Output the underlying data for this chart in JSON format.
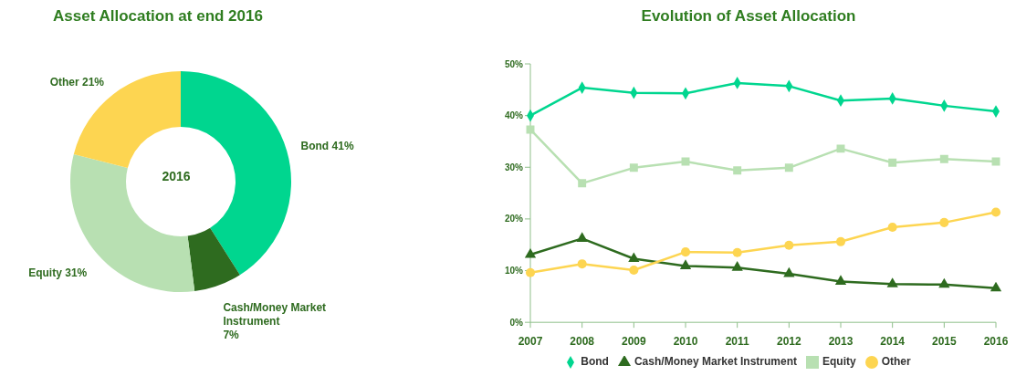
{
  "chart_data": [
    {
      "type": "donut",
      "title": "Asset Allocation at end 2016",
      "categories": [
        "Bond",
        "Cash/Money Market Instrument",
        "Equity",
        "Other"
      ],
      "values": [
        41,
        7,
        31,
        21
      ],
      "value_labels": [
        "41%",
        "7%",
        "31%",
        "21%"
      ],
      "colors": [
        "#00d68f",
        "#2e6b1f",
        "#b8e0b2",
        "#fdd551"
      ],
      "annotations": [
        "2016"
      ],
      "legend": false
    },
    {
      "type": "line",
      "title": "Evolution of Asset Allocation",
      "categories": [
        "2007",
        "2008",
        "2009",
        "2010",
        "2011",
        "2012",
        "2013",
        "2014",
        "2015",
        "2016"
      ],
      "ylim": [
        0,
        50
      ],
      "yticks": [
        {
          "value": 0,
          "label": "0%"
        },
        {
          "value": 10,
          "label": "10%"
        },
        {
          "value": 20,
          "label": "20%"
        },
        {
          "value": 30,
          "label": "30%"
        },
        {
          "value": 40,
          "label": "40%"
        },
        {
          "value": 50,
          "label": "50%"
        }
      ],
      "grid": false,
      "legend": "bottom",
      "series": [
        {
          "name": "Bond",
          "color": "#00d68f",
          "marker": "diamond",
          "values": [
            40,
            45.4,
            44.4,
            44.3,
            46.3,
            45.7,
            42.9,
            43.3,
            41.9,
            40.8
          ]
        },
        {
          "name": "Equity",
          "color": "#b8e0b2",
          "marker": "square",
          "values": [
            37.3,
            26.9,
            29.9,
            31.1,
            29.4,
            29.9,
            33.6,
            30.9,
            31.6,
            31.1
          ]
        },
        {
          "name": "Cash/Money Market Instrument",
          "color": "#2e6b1f",
          "marker": "triangle",
          "values": [
            13.1,
            16.2,
            12.3,
            10.9,
            10.6,
            9.4,
            7.9,
            7.4,
            7.3,
            6.6
          ]
        },
        {
          "name": "Other",
          "color": "#fdd551",
          "marker": "circle",
          "values": [
            9.6,
            11.3,
            10.1,
            13.6,
            13.5,
            14.9,
            15.6,
            18.4,
            19.3,
            21.3
          ]
        }
      ]
    }
  ]
}
